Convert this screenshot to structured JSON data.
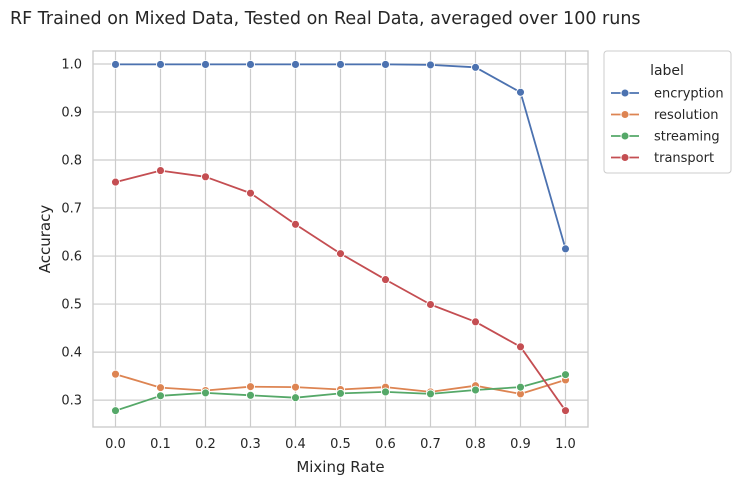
{
  "chart_data": {
    "type": "line",
    "title": "RF Trained on Mixed Data, Tested on Real Data, averaged over 100 runs",
    "xlabel": "Mixing Rate",
    "ylabel": "Accuracy",
    "x": [
      0.0,
      0.1,
      0.2,
      0.3,
      0.4,
      0.5,
      0.6,
      0.7,
      0.8,
      0.9,
      1.0
    ],
    "x_tick_labels": [
      "0.0",
      "0.1",
      "0.2",
      "0.3",
      "0.4",
      "0.5",
      "0.6",
      "0.7",
      "0.8",
      "0.9",
      "1.0"
    ],
    "y_ticks": [
      0.3,
      0.4,
      0.5,
      0.6,
      0.7,
      0.8,
      0.9,
      1.0
    ],
    "y_tick_labels": [
      "0.3",
      "0.4",
      "0.5",
      "0.6",
      "0.7",
      "0.8",
      "0.9",
      "1.0"
    ],
    "xlim": [
      -0.05,
      1.05
    ],
    "ylim": [
      0.244,
      1.027
    ],
    "grid": true,
    "legend": {
      "title": "label",
      "placement": "outside-upper-right"
    },
    "series": [
      {
        "name": "encryption",
        "color": "#4c72b0",
        "values": [
          0.999,
          0.999,
          0.999,
          0.999,
          0.999,
          0.999,
          0.999,
          0.998,
          0.993,
          0.941,
          0.615
        ]
      },
      {
        "name": "resolution",
        "color": "#dd8452",
        "values": [
          0.354,
          0.326,
          0.32,
          0.328,
          0.327,
          0.322,
          0.327,
          0.317,
          0.33,
          0.313,
          0.342
        ]
      },
      {
        "name": "streaming",
        "color": "#55a868",
        "values": [
          0.278,
          0.309,
          0.315,
          0.31,
          0.305,
          0.314,
          0.317,
          0.313,
          0.321,
          0.327,
          0.353
        ]
      },
      {
        "name": "transport",
        "color": "#c44e52",
        "values": [
          0.754,
          0.778,
          0.765,
          0.731,
          0.666,
          0.605,
          0.551,
          0.499,
          0.463,
          0.411,
          0.278
        ]
      }
    ]
  }
}
